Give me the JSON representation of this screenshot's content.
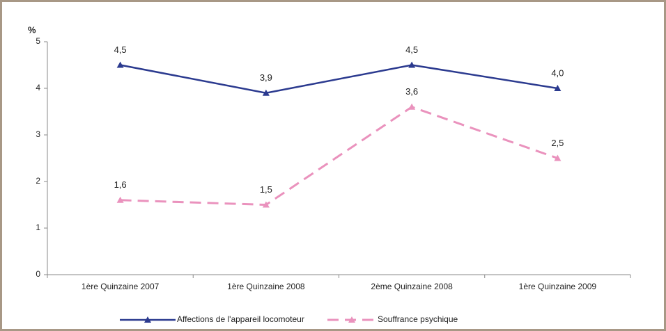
{
  "chart_data": {
    "type": "line",
    "y_label": "%",
    "categories": [
      "1ère Quinzaine 2007",
      "1ère Quinzaine 2008",
      "2ème Quinzaine 2008",
      "1ère Quinzaine 2009"
    ],
    "series": [
      {
        "name": "Affections de l'appareil locomoteur",
        "color": "#2b3a8f",
        "dashed": false,
        "values": [
          4.5,
          3.9,
          4.5,
          4.0
        ],
        "value_labels": [
          "4,5",
          "3,9",
          "4,5",
          "4,0"
        ]
      },
      {
        "name": "Souffrance psychique",
        "color": "#ea92bd",
        "dashed": true,
        "values": [
          1.6,
          1.5,
          3.6,
          2.5
        ],
        "value_labels": [
          "1,6",
          "1,5",
          "3,6",
          "2,5"
        ]
      }
    ],
    "ylim": [
      0,
      5
    ],
    "yticks": [
      0,
      1,
      2,
      3,
      4,
      5
    ],
    "grid": false,
    "legend": "bottom"
  }
}
